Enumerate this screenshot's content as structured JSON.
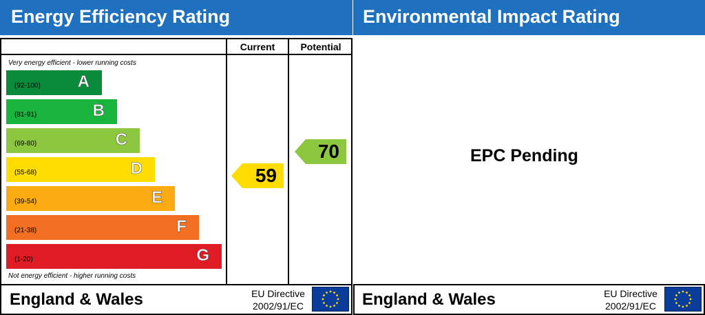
{
  "left_panel": {
    "title": "Energy Efficiency Rating",
    "column_current": "Current",
    "column_potential": "Potential",
    "top_note": "Very energy efficient - lower running costs",
    "bottom_note": "Not energy efficient - higher running costs",
    "region": "England & Wales",
    "directive_line1": "EU Directive",
    "directive_line2": "2002/91/EC"
  },
  "right_panel": {
    "title": "Environmental Impact Rating",
    "status": "EPC Pending",
    "region": "England & Wales",
    "directive_line1": "EU Directive",
    "directive_line2": "2002/91/EC"
  },
  "chart_data": {
    "type": "bar",
    "categories": [
      "A",
      "B",
      "C",
      "D",
      "E",
      "F",
      "G"
    ],
    "ranges": [
      "(92-100)",
      "(81-91)",
      "(69-80)",
      "(55-68)",
      "(39-54)",
      "(21-38)",
      "(1-20)"
    ],
    "colors": [
      "#098b3b",
      "#19b43d",
      "#8dc63f",
      "#ffdd00",
      "#fcaa12",
      "#f26e22",
      "#df1c24"
    ],
    "current": {
      "value": 59,
      "band": "D",
      "color": "#ffdd00"
    },
    "potential": {
      "value": 70,
      "band": "C",
      "color": "#8dc63f"
    }
  }
}
